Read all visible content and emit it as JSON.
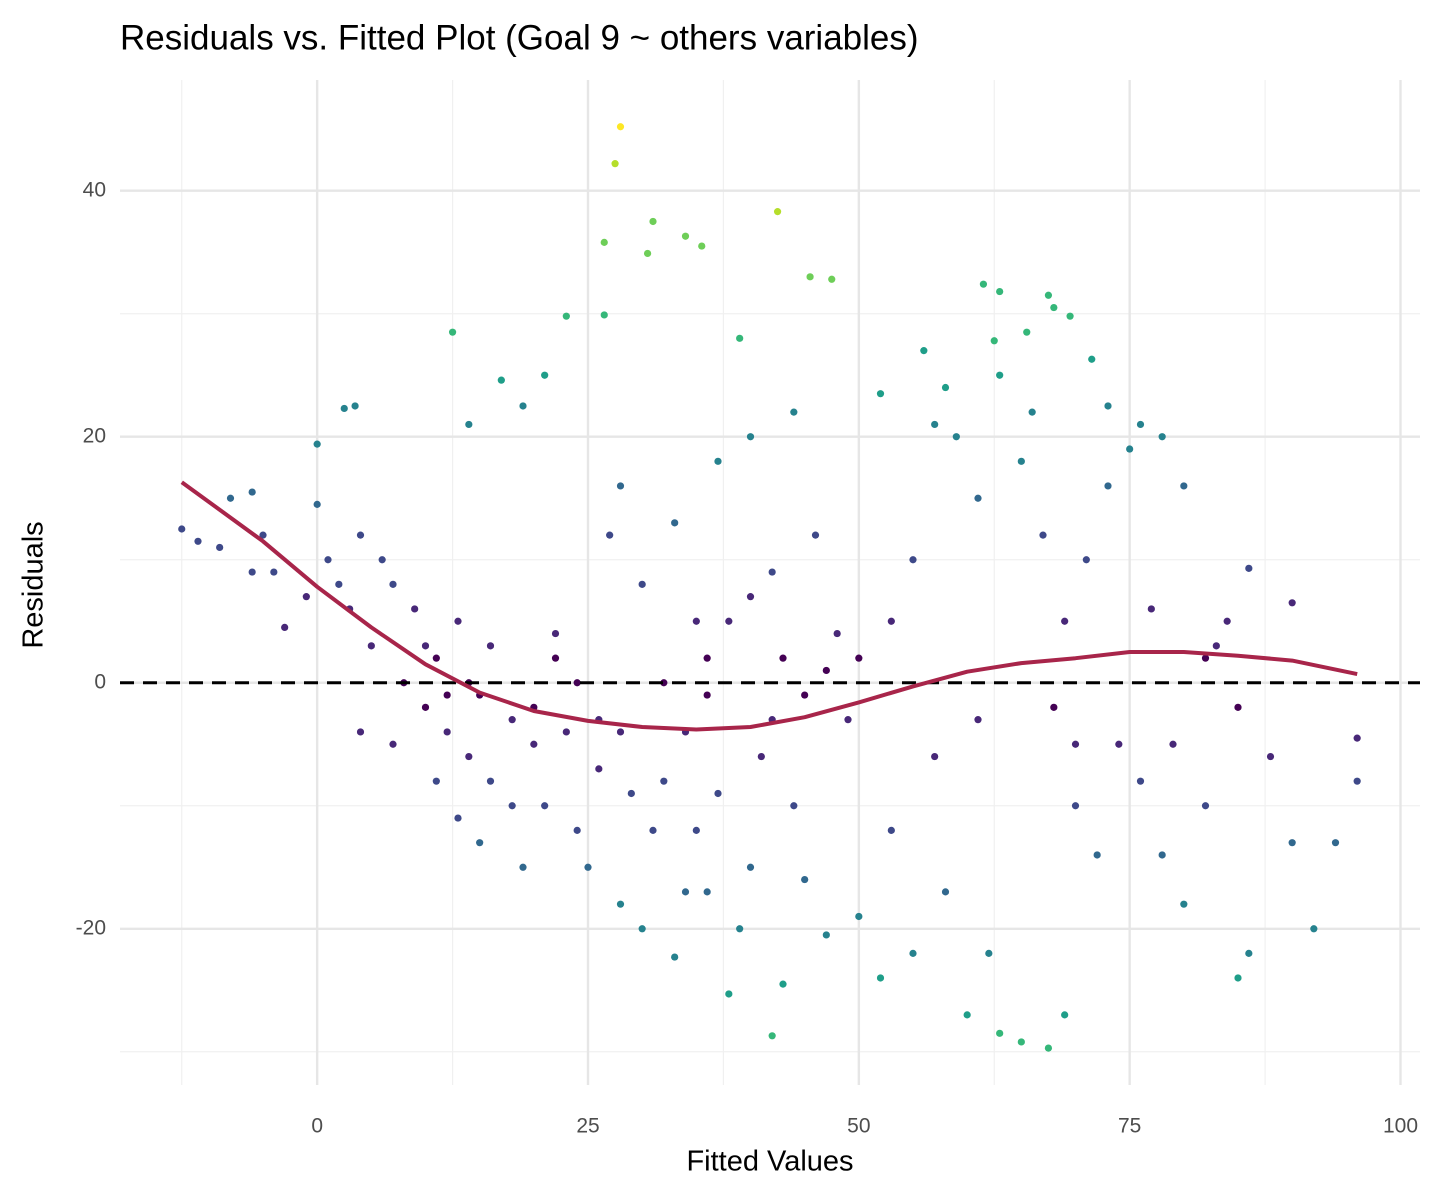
{
  "chart_data": {
    "type": "scatter",
    "title": "Residuals vs. Fitted Plot (Goal 9 ~ others variables)",
    "x_label": "Fitted Values",
    "y_label": "Residuals",
    "xlim": [
      -18.2,
      101.8
    ],
    "ylim": [
      -32.7,
      49
    ],
    "xticks": [
      0,
      25,
      50,
      75,
      100
    ],
    "yticks": [
      -20,
      0,
      20,
      40
    ],
    "xminorticks": [
      -12.5,
      12.5,
      37.5,
      62.5,
      87.5
    ],
    "yminorticks": [
      -30,
      -10,
      10,
      30
    ],
    "grid": true,
    "colormap": [
      "#440154",
      "#482878",
      "#3e4989",
      "#31688e",
      "#26828e",
      "#1f9e89",
      "#35b779",
      "#6ece58",
      "#b5de2b",
      "#fde725"
    ],
    "x": [
      28,
      27.5,
      31,
      42.5,
      26.5,
      34,
      35.5,
      30.5,
      45.5,
      47.5,
      61.5,
      63,
      67.5,
      69.5,
      68,
      65.5,
      23,
      26.5,
      12.5,
      62.5,
      71.5,
      -12.5,
      -11,
      -8,
      -6,
      -5,
      -3,
      0,
      2.5,
      3.5,
      0,
      1,
      3,
      5,
      7,
      8,
      10,
      11,
      12,
      13,
      14,
      15,
      16,
      18,
      19,
      20,
      22,
      24,
      25,
      28,
      30,
      32,
      33,
      35,
      36,
      38,
      40,
      42,
      43,
      44,
      45,
      47,
      50,
      52,
      55,
      58,
      60,
      62,
      63,
      65,
      67.5,
      69,
      70,
      72,
      74,
      76,
      78,
      80,
      82,
      85,
      86,
      88,
      90,
      92,
      94,
      96,
      96,
      90,
      86,
      84,
      82,
      80,
      78,
      76,
      75,
      73,
      71,
      69,
      67,
      65,
      63,
      61,
      59,
      57,
      55,
      53,
      50,
      48,
      46,
      44,
      42,
      40,
      38,
      36,
      34,
      32,
      30,
      28,
      26,
      24,
      22,
      20,
      18,
      16,
      14,
      12,
      10,
      9,
      6,
      4,
      2,
      -1,
      -6,
      -9,
      -4,
      17,
      19,
      21,
      14,
      37,
      33,
      27,
      39,
      52,
      56,
      58,
      66,
      73,
      61,
      57,
      53,
      49,
      47,
      68,
      70,
      85,
      83,
      79,
      77,
      39,
      34,
      31,
      37,
      41,
      29,
      26,
      23,
      21,
      13,
      11,
      15,
      7,
      4,
      28,
      35,
      43,
      45,
      40,
      36,
      42
    ],
    "y": [
      45.2,
      42.2,
      37.5,
      38.3,
      35.8,
      36.3,
      35.5,
      34.9,
      33,
      32.8,
      32.4,
      31.8,
      31.5,
      29.8,
      30.5,
      28.5,
      29.8,
      29.9,
      28.5,
      27.8,
      26.3,
      12.5,
      11.5,
      15,
      15.5,
      12,
      4.5,
      19.4,
      22.3,
      22.5,
      14.5,
      10,
      6,
      3,
      8,
      0,
      -2,
      2,
      -4,
      5,
      -6,
      -1,
      -8,
      -10,
      -15,
      -5,
      2,
      -12,
      -15,
      -18,
      -20,
      -8,
      -22.3,
      -12,
      -17,
      -25.3,
      -15,
      -28.7,
      -24.5,
      -10,
      -16,
      -20.5,
      -19,
      -24,
      -22,
      -17,
      -27,
      -22,
      -28.5,
      -29.2,
      -29.7,
      -27,
      -10,
      -14,
      -5,
      -8,
      -14,
      -18,
      -10,
      -24,
      -22,
      -6,
      -13,
      -20,
      -13,
      -8,
      -4.5,
      6.5,
      9.3,
      5,
      2,
      16,
      20,
      21,
      19,
      16,
      10,
      5,
      12,
      18,
      25,
      15,
      20,
      21,
      10,
      5,
      2,
      4,
      12,
      22,
      9,
      20,
      5,
      2,
      -4,
      0,
      8,
      16,
      -3,
      0,
      4,
      -2,
      -3,
      3,
      0,
      -1,
      3,
      6,
      10,
      12,
      8,
      7,
      9,
      11,
      9,
      24.6,
      22.5,
      25,
      21,
      18,
      13,
      12,
      28,
      23.5,
      27,
      24,
      22,
      22.5,
      -3,
      -6,
      -12,
      -3,
      1,
      -2,
      -5,
      -2,
      3,
      -5,
      6,
      -20,
      -17,
      -12,
      -9,
      -6,
      -9,
      -7,
      -4,
      -10,
      -11,
      -8,
      -13,
      -5,
      -4,
      -4,
      5,
      2,
      -1,
      7,
      -1,
      -3
    ],
    "hline": 0,
    "hline_color": "#000000",
    "smooth": {
      "color": "#a8254a",
      "x": [
        -12.5,
        -5,
        0,
        5,
        10,
        15,
        20,
        25,
        30,
        35,
        40,
        45,
        50,
        55,
        60,
        65,
        70,
        75,
        80,
        85,
        90,
        96
      ],
      "y": [
        16.3,
        11.5,
        7.8,
        4.5,
        1.5,
        -0.8,
        -2.3,
        -3.1,
        -3.6,
        -3.8,
        -3.6,
        -2.8,
        -1.6,
        -0.3,
        0.9,
        1.6,
        2.0,
        2.5,
        2.5,
        2.2,
        1.8,
        0.7
      ]
    }
  }
}
